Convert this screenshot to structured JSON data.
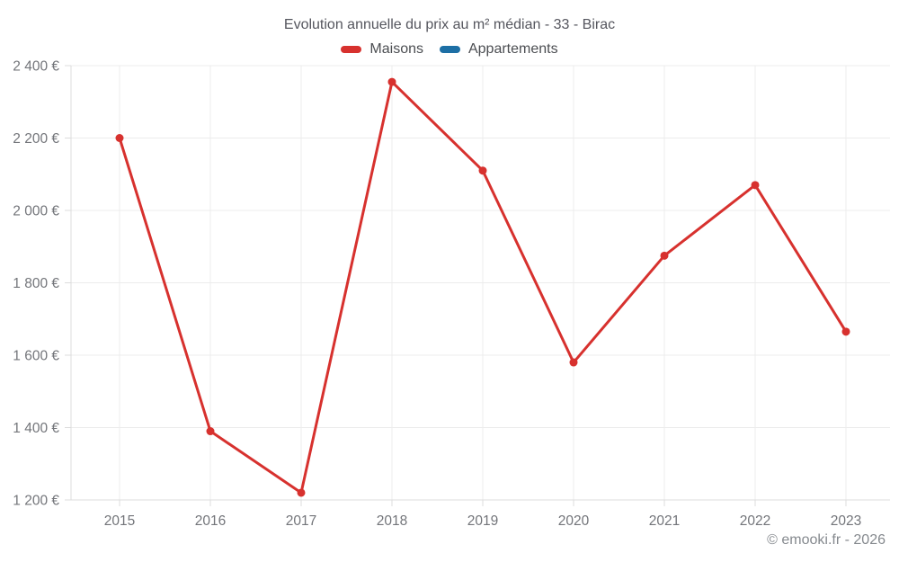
{
  "header": {
    "title": "Evolution annuelle du prix au m² médian - 33 - Birac"
  },
  "legend": {
    "items": [
      {
        "label": "Maisons",
        "color": "#d7312e"
      },
      {
        "label": "Appartements",
        "color": "#1d6fa5"
      }
    ]
  },
  "footer": {
    "credit": "© emooki.fr - 2026"
  },
  "colors": {
    "maisons": "#d7312e",
    "appartements": "#1d6fa5",
    "gridline": "#ececec",
    "axis_line": "#dcdcdc",
    "tick_label": "#73757a"
  },
  "chart_data": {
    "type": "line",
    "title": "Evolution annuelle du prix au m² médian - 33 - Birac",
    "xlabel": "",
    "ylabel": "",
    "categories": [
      "2015",
      "2016",
      "2017",
      "2018",
      "2019",
      "2020",
      "2021",
      "2022",
      "2023"
    ],
    "series": [
      {
        "name": "Maisons",
        "color": "#d7312e",
        "values": [
          2200,
          1390,
          1220,
          2355,
          2110,
          1580,
          1875,
          2070,
          1665
        ]
      },
      {
        "name": "Appartements",
        "color": "#1d6fa5",
        "values": []
      }
    ],
    "ylim": [
      1200,
      2400
    ],
    "yticks": {
      "values": [
        1200,
        1400,
        1600,
        1800,
        2000,
        2200,
        2400
      ],
      "labels": [
        "1 200 €",
        "1 400 €",
        "1 600 €",
        "1 800 €",
        "2 000 €",
        "2 200 €",
        "2 400 €"
      ]
    },
    "grid": true,
    "legend_position": "top",
    "point_radius": 4.5,
    "line_width": 3
  }
}
